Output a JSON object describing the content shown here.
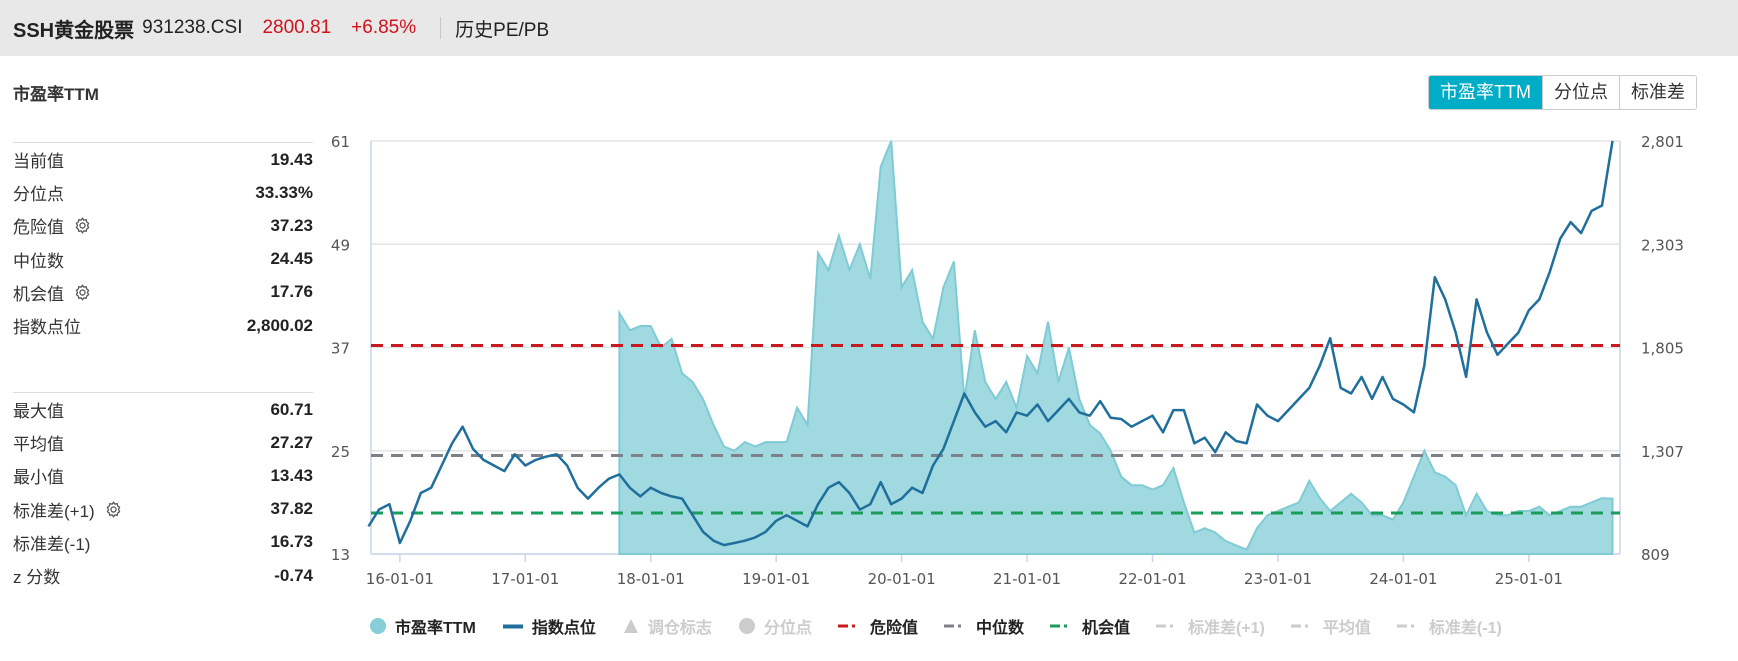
{
  "header": {
    "name": "SSH黄金股票",
    "code": "931238.CSI",
    "price": "2800.81",
    "change": "+6.85%",
    "nav_link": "历史PE/PB"
  },
  "section_title": "市盈率TTM",
  "toggle": {
    "items": [
      "市盈率TTM",
      "分位点",
      "标准差"
    ],
    "active": 0,
    "active_color": "#00adc6"
  },
  "stats_top": [
    {
      "label": "当前值",
      "value": "19.43",
      "gear": false
    },
    {
      "label": "分位点",
      "value": "33.33%",
      "gear": false
    },
    {
      "label": "危险值",
      "value": "37.23",
      "gear": true
    },
    {
      "label": "中位数",
      "value": "24.45",
      "gear": false
    },
    {
      "label": "机会值",
      "value": "17.76",
      "gear": true
    },
    {
      "label": "指数点位",
      "value": "2,800.02",
      "gear": false
    }
  ],
  "stats_bottom": [
    {
      "label": "最大值",
      "value": "60.71",
      "gear": false
    },
    {
      "label": "平均值",
      "value": "27.27",
      "gear": false
    },
    {
      "label": "最小值",
      "value": "13.43",
      "gear": false
    },
    {
      "label": "标准差(+1)",
      "value": "37.82",
      "gear": true
    },
    {
      "label": "标准差(-1)",
      "value": "16.73",
      "gear": false
    },
    {
      "label": "z 分数",
      "value": "-0.74",
      "gear": false
    }
  ],
  "legend": [
    {
      "label": "市盈率TTM",
      "symbol": "circle",
      "color": "#86cfd8",
      "active": true
    },
    {
      "label": "指数点位",
      "symbol": "line",
      "color": "#1f6f9c",
      "active": true
    },
    {
      "label": "调仓标志",
      "symbol": "triangle",
      "color": "#cccccc",
      "active": false
    },
    {
      "label": "分位点",
      "symbol": "circle",
      "color": "#cccccc",
      "active": false
    },
    {
      "label": "危险值",
      "symbol": "dash",
      "color": "#c8191e",
      "active": true
    },
    {
      "label": "中位数",
      "symbol": "dash",
      "color": "#7e8288",
      "active": true
    },
    {
      "label": "机会值",
      "symbol": "dash",
      "color": "#1a9c5b",
      "active": true
    },
    {
      "label": "标准差(+1)",
      "symbol": "dash",
      "color": "#cccccc",
      "active": false
    },
    {
      "label": "平均值",
      "symbol": "dash",
      "color": "#cccccc",
      "active": false
    },
    {
      "label": "标准差(-1)",
      "symbol": "dash",
      "color": "#cccccc",
      "active": false
    }
  ],
  "chart_data": {
    "type": "area+line",
    "x_range": [
      "2015-10",
      "2025-09"
    ],
    "x_ticks": [
      "16-01-01",
      "17-01-01",
      "18-01-01",
      "19-01-01",
      "20-01-01",
      "21-01-01",
      "22-01-01",
      "23-01-01",
      "24-01-01",
      "25-01-01"
    ],
    "y_left": {
      "ticks": [
        "13",
        "25",
        "37",
        "49",
        "61"
      ],
      "range": [
        13,
        61
      ]
    },
    "y_right": {
      "ticks": [
        "809",
        "1,307",
        "1,805",
        "2,303",
        "2,801"
      ],
      "range": [
        809,
        2801
      ]
    },
    "grid": true,
    "legend_position": "bottom",
    "reference_lines": [
      {
        "name": "危险值",
        "value": 37.23,
        "color": "#c8191e"
      },
      {
        "name": "中位数",
        "value": 24.45,
        "color": "#7e8288"
      },
      {
        "name": "机会值",
        "value": 17.76,
        "color": "#1a9c5b"
      }
    ],
    "series": [
      {
        "name": "市盈率TTM",
        "axis": "left",
        "type": "area",
        "color": "#86cfd8",
        "points": [
          [
            "2017-10",
            41
          ],
          [
            "2017-11",
            39
          ],
          [
            "2017-12",
            39.5
          ],
          [
            "2018-01",
            39.5
          ],
          [
            "2018-02",
            37
          ],
          [
            "2018-03",
            38
          ],
          [
            "2018-04",
            34
          ],
          [
            "2018-05",
            33
          ],
          [
            "2018-06",
            31
          ],
          [
            "2018-07",
            28
          ],
          [
            "2018-08",
            25.5
          ],
          [
            "2018-09",
            25
          ],
          [
            "2018-10",
            26
          ],
          [
            "2018-11",
            25.5
          ],
          [
            "2018-12",
            26
          ],
          [
            "2019-01",
            26
          ],
          [
            "2019-02",
            26
          ],
          [
            "2019-03",
            30
          ],
          [
            "2019-04",
            28
          ],
          [
            "2019-05",
            48
          ],
          [
            "2019-06",
            46
          ],
          [
            "2019-07",
            50
          ],
          [
            "2019-08",
            46
          ],
          [
            "2019-09",
            49
          ],
          [
            "2019-10",
            45
          ],
          [
            "2019-11",
            58
          ],
          [
            "2019-12",
            61
          ],
          [
            "2020-01",
            44
          ],
          [
            "2020-02",
            46
          ],
          [
            "2020-03",
            40
          ],
          [
            "2020-04",
            38
          ],
          [
            "2020-05",
            44
          ],
          [
            "2020-06",
            47
          ],
          [
            "2020-07",
            31
          ],
          [
            "2020-08",
            39
          ],
          [
            "2020-09",
            33
          ],
          [
            "2020-10",
            31
          ],
          [
            "2020-11",
            33
          ],
          [
            "2020-12",
            30
          ],
          [
            "2021-01",
            36
          ],
          [
            "2021-02",
            34
          ],
          [
            "2021-03",
            40
          ],
          [
            "2021-04",
            33
          ],
          [
            "2021-05",
            37
          ],
          [
            "2021-06",
            31
          ],
          [
            "2021-07",
            28
          ],
          [
            "2021-08",
            27
          ],
          [
            "2021-09",
            25
          ],
          [
            "2021-10",
            22
          ],
          [
            "2021-11",
            21
          ],
          [
            "2021-12",
            21
          ],
          [
            "2022-01",
            20.5
          ],
          [
            "2022-02",
            21
          ],
          [
            "2022-03",
            23
          ],
          [
            "2022-04",
            19
          ],
          [
            "2022-05",
            15.5
          ],
          [
            "2022-06",
            16
          ],
          [
            "2022-07",
            15.5
          ],
          [
            "2022-08",
            14.5
          ],
          [
            "2022-09",
            14
          ],
          [
            "2022-10",
            13.5
          ],
          [
            "2022-11",
            16
          ],
          [
            "2022-12",
            17.5
          ],
          [
            "2023-01",
            18
          ],
          [
            "2023-02",
            18.5
          ],
          [
            "2023-03",
            19
          ],
          [
            "2023-04",
            21.5
          ],
          [
            "2023-05",
            19.5
          ],
          [
            "2023-06",
            18
          ],
          [
            "2023-07",
            19
          ],
          [
            "2023-08",
            20
          ],
          [
            "2023-09",
            19
          ],
          [
            "2023-10",
            17.5
          ],
          [
            "2023-11",
            17.5
          ],
          [
            "2023-12",
            17
          ],
          [
            "2024-01",
            19
          ],
          [
            "2024-02",
            22
          ],
          [
            "2024-03",
            25
          ],
          [
            "2024-04",
            22.5
          ],
          [
            "2024-05",
            22
          ],
          [
            "2024-06",
            21
          ],
          [
            "2024-07",
            17.5
          ],
          [
            "2024-08",
            20
          ],
          [
            "2024-09",
            18
          ],
          [
            "2024-10",
            17.5
          ],
          [
            "2024-11",
            17.5
          ],
          [
            "2024-12",
            18
          ],
          [
            "2025-01",
            18
          ],
          [
            "2025-02",
            18.5
          ],
          [
            "2025-03",
            17.5
          ],
          [
            "2025-04",
            18
          ],
          [
            "2025-05",
            18.5
          ],
          [
            "2025-06",
            18.5
          ],
          [
            "2025-07",
            19
          ],
          [
            "2025-08",
            19.5
          ],
          [
            "2025-09",
            19.43
          ]
        ]
      },
      {
        "name": "指数点位",
        "axis": "right",
        "type": "line",
        "color": "#1f6f9c",
        "points": [
          [
            "2015-10",
            942
          ],
          [
            "2015-11",
            1023
          ],
          [
            "2015-12",
            1049
          ],
          [
            "2016-01",
            862
          ],
          [
            "2016-02",
            969
          ],
          [
            "2016-03",
            1103
          ],
          [
            "2016-04",
            1129
          ],
          [
            "2016-05",
            1236
          ],
          [
            "2016-06",
            1343
          ],
          [
            "2016-07",
            1423
          ],
          [
            "2016-08",
            1316
          ],
          [
            "2016-09",
            1263
          ],
          [
            "2016-10",
            1236
          ],
          [
            "2016-11",
            1209
          ],
          [
            "2016-12",
            1290
          ],
          [
            "2017-01",
            1236
          ],
          [
            "2017-02",
            1263
          ],
          [
            "2017-03",
            1279
          ],
          [
            "2017-04",
            1290
          ],
          [
            "2017-05",
            1236
          ],
          [
            "2017-06",
            1129
          ],
          [
            "2017-07",
            1076
          ],
          [
            "2017-08",
            1129
          ],
          [
            "2017-09",
            1172
          ],
          [
            "2017-10",
            1193
          ],
          [
            "2017-11",
            1129
          ],
          [
            "2017-12",
            1087
          ],
          [
            "2018-01",
            1129
          ],
          [
            "2018-02",
            1103
          ],
          [
            "2018-03",
            1087
          ],
          [
            "2018-04",
            1076
          ],
          [
            "2018-05",
            996
          ],
          [
            "2018-06",
            916
          ],
          [
            "2018-07",
            873
          ],
          [
            "2018-08",
            852
          ],
          [
            "2018-09",
            862
          ],
          [
            "2018-10",
            873
          ],
          [
            "2018-11",
            889
          ],
          [
            "2018-12",
            916
          ],
          [
            "2019-01",
            969
          ],
          [
            "2019-02",
            996
          ],
          [
            "2019-03",
            969
          ],
          [
            "2019-04",
            942
          ],
          [
            "2019-05",
            1049
          ],
          [
            "2019-06",
            1129
          ],
          [
            "2019-07",
            1156
          ],
          [
            "2019-08",
            1103
          ],
          [
            "2019-09",
            1023
          ],
          [
            "2019-10",
            1049
          ],
          [
            "2019-11",
            1156
          ],
          [
            "2019-12",
            1049
          ],
          [
            "2020-01",
            1076
          ],
          [
            "2020-02",
            1129
          ],
          [
            "2020-03",
            1103
          ],
          [
            "2020-04",
            1236
          ],
          [
            "2020-05",
            1316
          ],
          [
            "2020-06",
            1450
          ],
          [
            "2020-07",
            1583
          ],
          [
            "2020-08",
            1492
          ],
          [
            "2020-09",
            1423
          ],
          [
            "2020-10",
            1450
          ],
          [
            "2020-11",
            1396
          ],
          [
            "2020-12",
            1492
          ],
          [
            "2021-01",
            1476
          ],
          [
            "2021-02",
            1530
          ],
          [
            "2021-03",
            1450
          ],
          [
            "2021-04",
            1503
          ],
          [
            "2021-05",
            1557
          ],
          [
            "2021-06",
            1492
          ],
          [
            "2021-07",
            1476
          ],
          [
            "2021-08",
            1546
          ],
          [
            "2021-09",
            1466
          ],
          [
            "2021-10",
            1460
          ],
          [
            "2021-11",
            1423
          ],
          [
            "2021-12",
            1450
          ],
          [
            "2022-01",
            1476
          ],
          [
            "2022-02",
            1396
          ],
          [
            "2022-03",
            1503
          ],
          [
            "2022-04",
            1503
          ],
          [
            "2022-05",
            1343
          ],
          [
            "2022-06",
            1370
          ],
          [
            "2022-07",
            1300
          ],
          [
            "2022-08",
            1396
          ],
          [
            "2022-09",
            1354
          ],
          [
            "2022-10",
            1343
          ],
          [
            "2022-11",
            1530
          ],
          [
            "2022-12",
            1476
          ],
          [
            "2023-01",
            1450
          ],
          [
            "2023-02",
            1503
          ],
          [
            "2023-03",
            1557
          ],
          [
            "2023-04",
            1610
          ],
          [
            "2023-05",
            1717
          ],
          [
            "2023-06",
            1850
          ],
          [
            "2023-07",
            1610
          ],
          [
            "2023-08",
            1583
          ],
          [
            "2023-09",
            1663
          ],
          [
            "2023-10",
            1557
          ],
          [
            "2023-11",
            1663
          ],
          [
            "2023-12",
            1557
          ],
          [
            "2024-01",
            1530
          ],
          [
            "2024-02",
            1492
          ],
          [
            "2024-03",
            1717
          ],
          [
            "2024-04",
            2144
          ],
          [
            "2024-05",
            2037
          ],
          [
            "2024-06",
            1877
          ],
          [
            "2024-07",
            1663
          ],
          [
            "2024-08",
            2037
          ],
          [
            "2024-09",
            1877
          ],
          [
            "2024-10",
            1770
          ],
          [
            "2024-11",
            1824
          ],
          [
            "2024-12",
            1877
          ],
          [
            "2025-01",
            1984
          ],
          [
            "2025-02",
            2037
          ],
          [
            "2025-03",
            2170
          ],
          [
            "2025-04",
            2330
          ],
          [
            "2025-05",
            2410
          ],
          [
            "2025-06",
            2357
          ],
          [
            "2025-07",
            2464
          ],
          [
            "2025-08",
            2490
          ],
          [
            "2025-09",
            2801
          ]
        ]
      }
    ]
  }
}
